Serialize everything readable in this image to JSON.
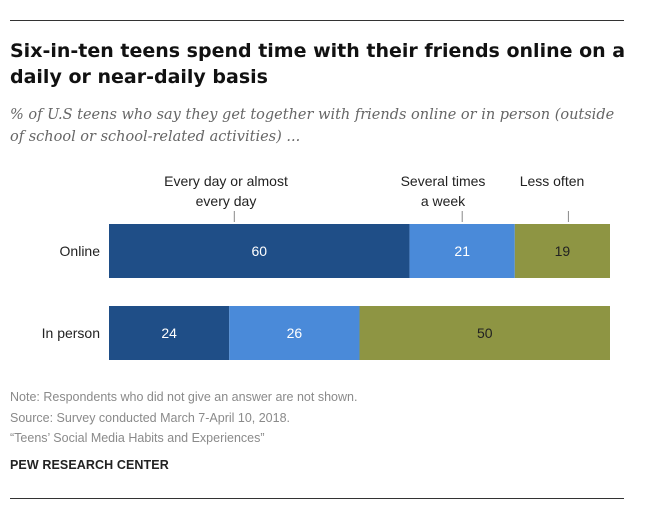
{
  "title": "Six-in-ten teens spend time with their friends online on a daily or near-daily basis",
  "subtitle": "% of U.S teens who say they get together with friends online or in person (outside of school or school-related activities) ...",
  "note": "Note: Respondents who did not give an answer are not shown.",
  "source": "Source: Survey conducted March 7-April 10, 2018.",
  "report": "“Teens’ Social Media Habits and Experiences”",
  "organization": "PEW RESEARCH CENTER",
  "chart_data": {
    "type": "bar",
    "orientation": "horizontal",
    "stacked": true,
    "categories": [
      "Online",
      "In person"
    ],
    "series": [
      {
        "name": "Every day or almost every day",
        "values": [
          60,
          24
        ],
        "color": "#1f4e87"
      },
      {
        "name": "Several times a week",
        "values": [
          21,
          26
        ],
        "color": "#4a8ad9"
      },
      {
        "name": "Less often",
        "values": [
          19,
          50
        ],
        "color": "#8e9543"
      }
    ],
    "legend_labels": [
      [
        "Every day or almost",
        "every day"
      ],
      [
        "Several times",
        "a week"
      ],
      [
        "Less often"
      ]
    ],
    "legend_position": "top, above first bar",
    "xlim": [
      0,
      100
    ],
    "grid": false
  }
}
